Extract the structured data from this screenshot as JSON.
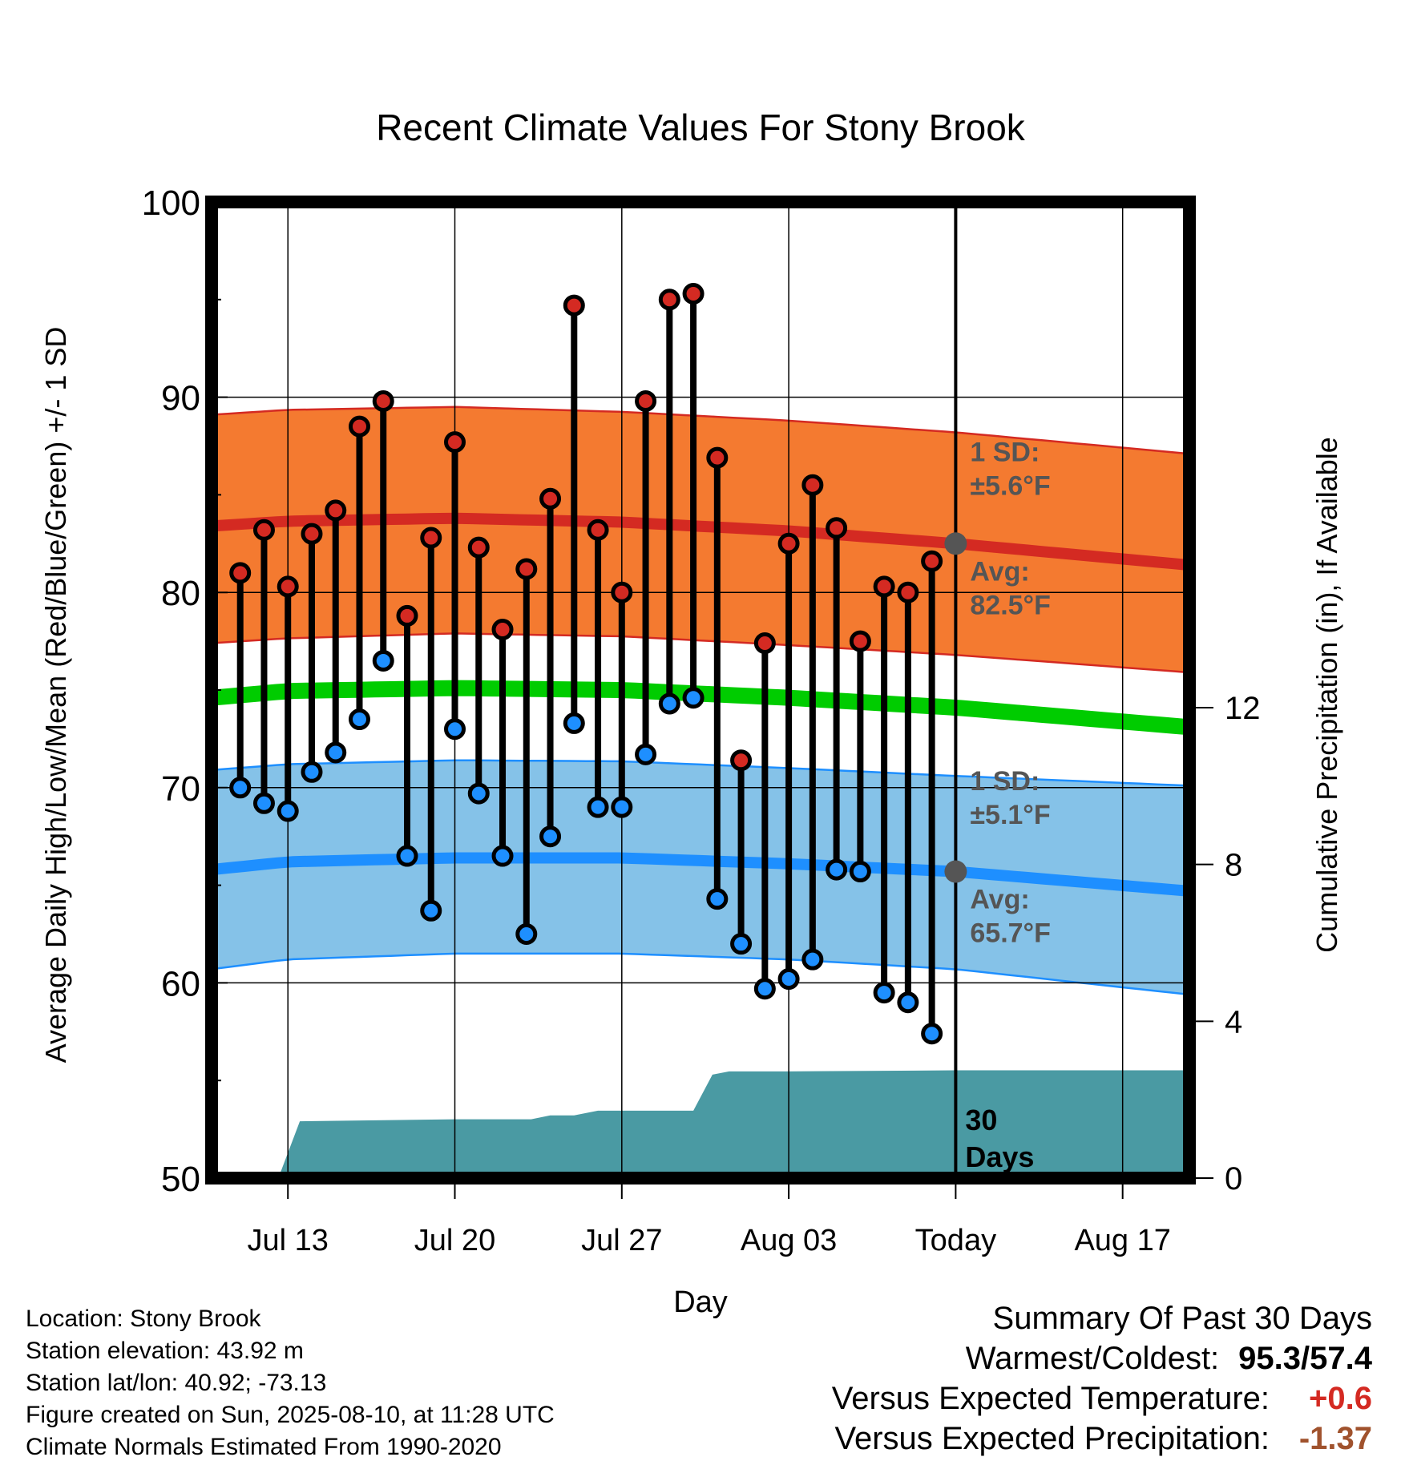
{
  "title": "Recent Climate Values For Stony Brook",
  "left_axis_label": "Average Daily High/Low/Mean (Red/Blue/Green) +/- 1 SD",
  "right_axis_label": "Cumulative Precipitation (in), If Available",
  "x_axis_label": "Day",
  "info": {
    "location": "Location: Stony Brook",
    "elevation": "Station elevation: 43.92 m",
    "latlon": "Station lat/lon: 40.92; -73.13",
    "created": "Figure created on Sun, 2025-08-10, at 11:28 UTC",
    "normals": "Climate Normals Estimated From 1990-2020"
  },
  "summary": {
    "title": "Summary Of Past 30 Days",
    "warm_cold_label": "Warmest/Coldest:",
    "warm_cold_value": "95.3/57.4",
    "temp_label": "Versus Expected Temperature:",
    "temp_value": "+0.6",
    "precip_label": "Versus Expected Precipitation:",
    "precip_value": "-1.37"
  },
  "colors": {
    "high_band": "#f47a30",
    "high_line": "#d42a22",
    "low_band": "#85c2e8",
    "low_line": "#1e8fff",
    "mean_line": "#00cc00",
    "precip_fill": "#4a9aa3",
    "high_marker": "#d42a22",
    "low_marker": "#1e8fff",
    "annotation_text": "#555555"
  },
  "chart_data": {
    "type": "line",
    "x_unit": "day offset (0 = Today, Aug 10)",
    "x_ticks": [
      {
        "day": -28,
        "label": "Jul 13"
      },
      {
        "day": -21,
        "label": "Jul 20"
      },
      {
        "day": -14,
        "label": "Jul 27"
      },
      {
        "day": -7,
        "label": "Aug 03"
      },
      {
        "day": 0,
        "label": "Today"
      },
      {
        "day": 7,
        "label": "Aug 17"
      }
    ],
    "xlim": [
      -31.2,
      9.8
    ],
    "ylim_left": [
      50,
      100
    ],
    "yticks_left": [
      50,
      60,
      70,
      80,
      90,
      100
    ],
    "ylim_right": [
      0,
      24.9
    ],
    "yticks_right": [
      0,
      4,
      8,
      12
    ],
    "daily": [
      {
        "day": -30,
        "high": 81.0,
        "low": 70.0
      },
      {
        "day": -29,
        "high": 83.2,
        "low": 69.2
      },
      {
        "day": -28,
        "high": 80.3,
        "low": 68.8
      },
      {
        "day": -27,
        "high": 83.0,
        "low": 70.8
      },
      {
        "day": -26,
        "high": 84.2,
        "low": 71.8
      },
      {
        "day": -25,
        "high": 88.5,
        "low": 73.5
      },
      {
        "day": -24,
        "high": 89.8,
        "low": 76.5
      },
      {
        "day": -23,
        "high": 78.8,
        "low": 66.5
      },
      {
        "day": -22,
        "high": 82.8,
        "low": 63.7
      },
      {
        "day": -21,
        "high": 87.7,
        "low": 73.0
      },
      {
        "day": -20,
        "high": 82.3,
        "low": 69.7
      },
      {
        "day": -19,
        "high": 78.1,
        "low": 66.5
      },
      {
        "day": -18,
        "high": 81.2,
        "low": 62.5
      },
      {
        "day": -17,
        "high": 84.8,
        "low": 67.5
      },
      {
        "day": -16,
        "high": 94.7,
        "low": 73.3
      },
      {
        "day": -15,
        "high": 83.2,
        "low": 69.0
      },
      {
        "day": -14,
        "high": 80.0,
        "low": 69.0
      },
      {
        "day": -13,
        "high": 89.8,
        "low": 71.7
      },
      {
        "day": -12,
        "high": 95.0,
        "low": 74.3
      },
      {
        "day": -11,
        "high": 95.3,
        "low": 74.6
      },
      {
        "day": -10,
        "high": 86.9,
        "low": 64.3
      },
      {
        "day": -9,
        "high": 71.4,
        "low": 62.0
      },
      {
        "day": -8,
        "high": 77.4,
        "low": 59.7
      },
      {
        "day": -7,
        "high": 82.5,
        "low": 60.2
      },
      {
        "day": -6,
        "high": 85.5,
        "low": 61.2
      },
      {
        "day": -5,
        "high": 83.3,
        "low": 65.8
      },
      {
        "day": -4,
        "high": 77.5,
        "low": 65.7
      },
      {
        "day": -3,
        "high": 80.3,
        "low": 59.5
      },
      {
        "day": -2,
        "high": 80.0,
        "low": 59.0
      },
      {
        "day": -1,
        "high": 81.6,
        "low": 57.4
      }
    ],
    "normals": {
      "day": [
        -31.2,
        -28,
        -21,
        -14,
        -7,
        0,
        9.8
      ],
      "high_upper": [
        89.1,
        89.35,
        89.5,
        89.25,
        88.8,
        88.2,
        87.1
      ],
      "high_mean": [
        83.4,
        83.65,
        83.8,
        83.6,
        83.15,
        82.5,
        81.4
      ],
      "high_lower": [
        77.4,
        77.65,
        77.9,
        77.75,
        77.3,
        76.8,
        75.9
      ],
      "mean": [
        74.6,
        74.95,
        75.1,
        75.0,
        74.6,
        74.1,
        73.1
      ],
      "low_upper": [
        70.9,
        71.2,
        71.4,
        71.35,
        71.0,
        70.6,
        70.1
      ],
      "low_mean": [
        65.8,
        66.2,
        66.4,
        66.4,
        66.1,
        65.7,
        64.7
      ],
      "low_lower": [
        60.7,
        61.2,
        61.5,
        61.5,
        61.2,
        60.7,
        59.4
      ]
    },
    "precip_cumulative": {
      "day": [
        -31.2,
        -28.4,
        -27.5,
        -21,
        -17.8,
        -17,
        -16,
        -15,
        -14.5,
        -14,
        -12,
        -11,
        -10.2,
        -9.5,
        -7,
        0,
        9.8
      ],
      "value": [
        0,
        0,
        1.45,
        1.5,
        1.5,
        1.6,
        1.6,
        1.72,
        1.72,
        1.72,
        1.72,
        1.72,
        2.64,
        2.72,
        2.72,
        2.75,
        2.75
      ]
    },
    "annotations": [
      {
        "line": "high",
        "text1": "1 SD:",
        "text2": "±5.6°F",
        "day": 0
      },
      {
        "line": "high",
        "text1": "Avg:",
        "text2": "82.5°F",
        "day": 0,
        "value": 82.5
      },
      {
        "line": "low",
        "text1": "1 SD:",
        "text2": "±5.1°F",
        "day": 0
      },
      {
        "line": "low",
        "text1": "Avg:",
        "text2": "65.7°F",
        "day": 0,
        "value": 65.7
      }
    ],
    "today_label": [
      "30",
      "Days"
    ]
  }
}
